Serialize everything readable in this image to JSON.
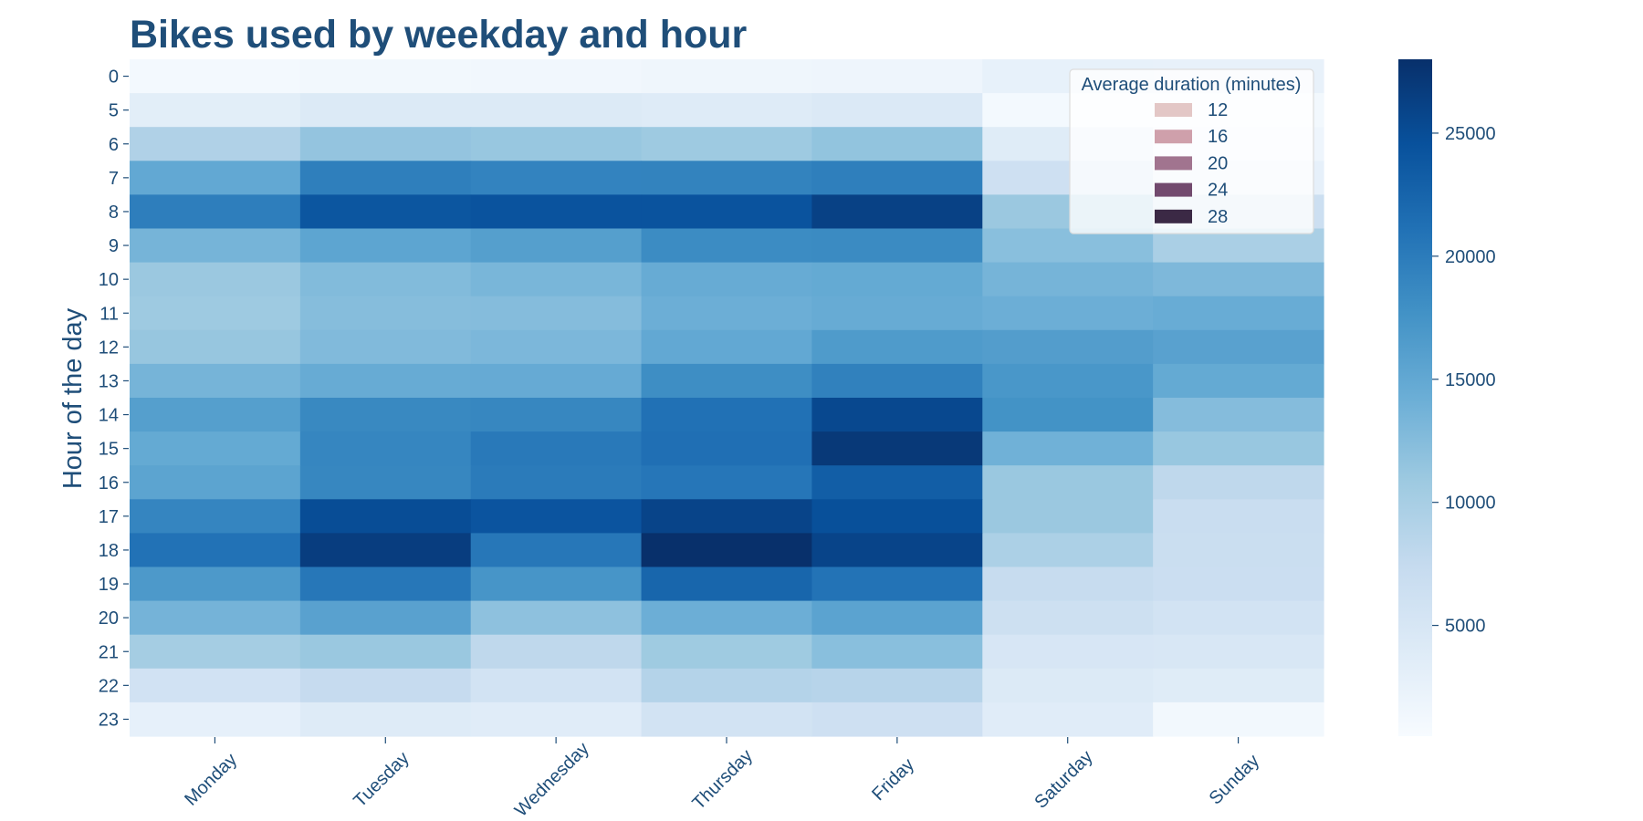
{
  "chart_data": {
    "type": "heatmap",
    "title": "Bikes used by weekday and hour",
    "xlabel": "",
    "ylabel": "Hour of the day",
    "x_categories": [
      "Monday",
      "Tuesday",
      "Wednesday",
      "Thursday",
      "Friday",
      "Saturday",
      "Sunday"
    ],
    "y_categories": [
      "0",
      "5",
      "6",
      "7",
      "8",
      "9",
      "10",
      "11",
      "12",
      "13",
      "14",
      "15",
      "16",
      "17",
      "18",
      "19",
      "20",
      "21",
      "22",
      "23"
    ],
    "values": [
      [
        1000,
        1200,
        1300,
        1600,
        1800,
        2700,
        2600
      ],
      [
        3400,
        4200,
        4200,
        3900,
        4400,
        1000,
        1200
      ],
      [
        9300,
        11500,
        11200,
        10800,
        11600,
        3800,
        1700
      ],
      [
        15000,
        19700,
        19200,
        19300,
        19700,
        6200,
        2800
      ],
      [
        19800,
        24000,
        24300,
        24300,
        26200,
        11000,
        6500
      ],
      [
        13500,
        15400,
        16100,
        18300,
        18400,
        12200,
        9800
      ],
      [
        11000,
        12700,
        13300,
        14600,
        14800,
        13500,
        13000
      ],
      [
        10800,
        12400,
        12500,
        14200,
        14600,
        14200,
        14500
      ],
      [
        11300,
        12800,
        13100,
        15000,
        16600,
        16300,
        15800
      ],
      [
        13500,
        14600,
        14700,
        18100,
        19500,
        17100,
        14800
      ],
      [
        16100,
        18600,
        18800,
        21100,
        25500,
        17600,
        12500
      ],
      [
        14800,
        18900,
        20300,
        21300,
        27100,
        13900,
        11200
      ],
      [
        15500,
        18800,
        20100,
        20600,
        23200,
        11100,
        8000
      ],
      [
        19000,
        25000,
        24200,
        25900,
        24700,
        11000,
        7000
      ],
      [
        21000,
        26600,
        20500,
        28300,
        25900,
        9600,
        6800
      ],
      [
        16800,
        20500,
        17300,
        22300,
        20900,
        7200,
        6700
      ],
      [
        13600,
        15800,
        11900,
        14200,
        15600,
        6400,
        5700
      ],
      [
        10200,
        11100,
        8000,
        10700,
        12200,
        5000,
        4800
      ],
      [
        5800,
        7400,
        5700,
        8900,
        8700,
        4200,
        3800
      ],
      [
        2800,
        4000,
        3700,
        5600,
        6300,
        3700,
        1200
      ]
    ],
    "colorbar": {
      "min": 500,
      "max": 28000,
      "ticks": [
        5000,
        10000,
        15000,
        20000,
        25000
      ],
      "colormap": "Blues"
    },
    "legend": {
      "title": "Average duration (minutes)",
      "placement": "top-right",
      "entries": [
        {
          "label": "12",
          "color": "#e3c7c6"
        },
        {
          "label": "16",
          "color": "#cfa0ab"
        },
        {
          "label": "20",
          "color": "#a1748f"
        },
        {
          "label": "24",
          "color": "#724a6e"
        },
        {
          "label": "28",
          "color": "#3b2945"
        }
      ]
    }
  },
  "colors": {
    "text": "#1f4e79"
  }
}
